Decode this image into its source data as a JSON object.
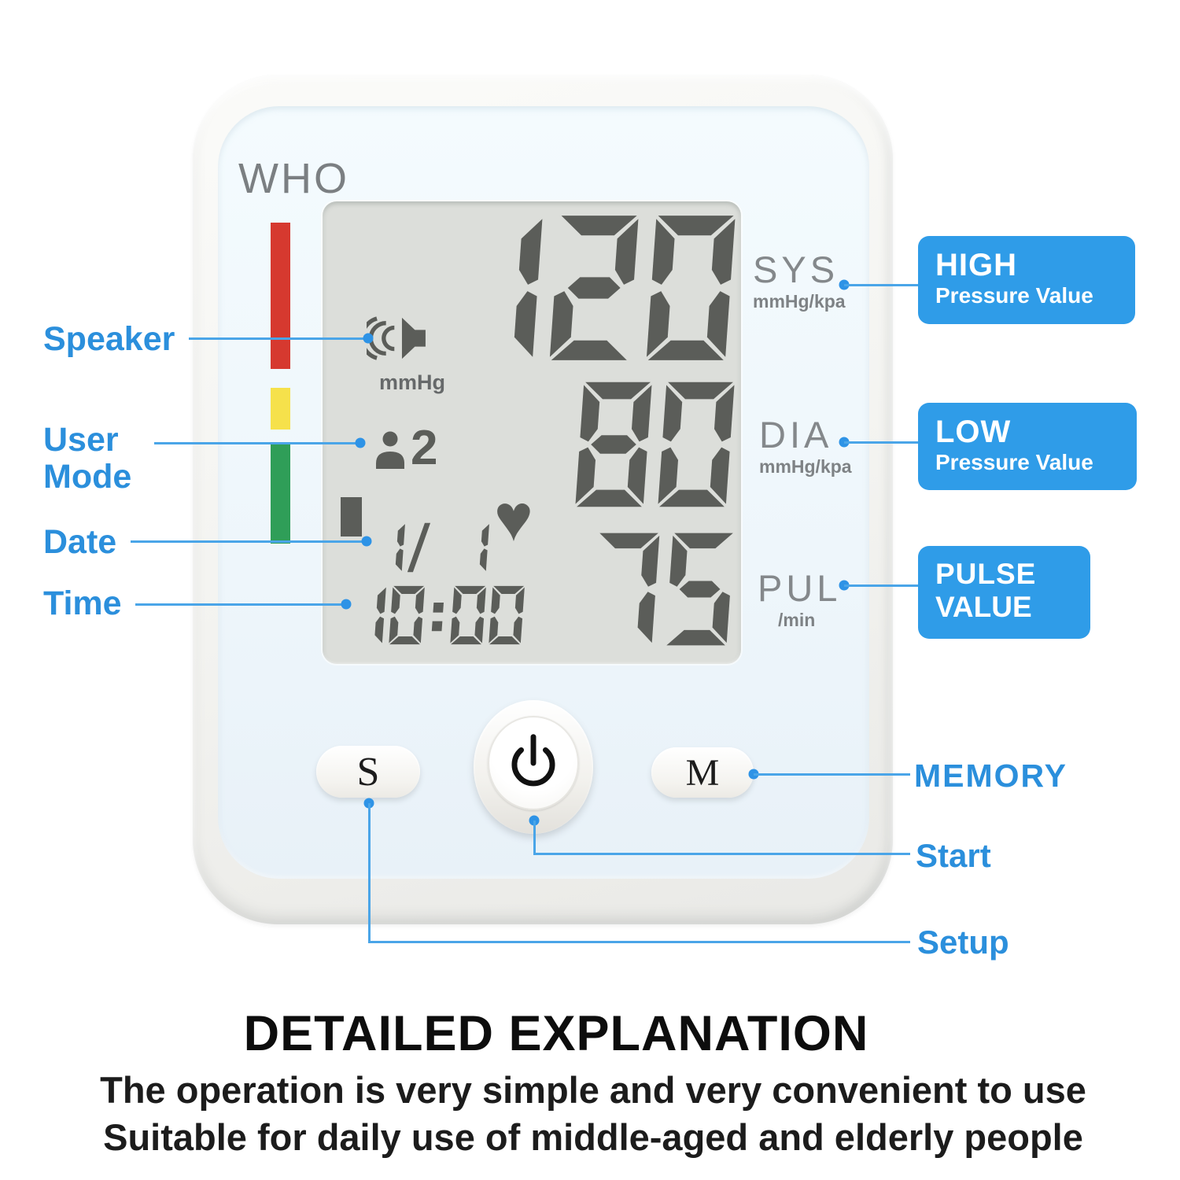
{
  "device": {
    "brand_label": "WHO",
    "display": {
      "sys_value": "120",
      "dia_value": "80",
      "pulse_value": "75",
      "date": "1/ 1",
      "time": "10:00",
      "unit_label": "mmHg",
      "user_mode_number": "2"
    },
    "panel_labels": {
      "sys": "SYS",
      "sys_unit": "mmHg/kpa",
      "dia": "DIA",
      "dia_unit": "mmHg/kpa",
      "pul": "PUL",
      "pul_unit": "/min"
    },
    "buttons": {
      "setup_label": "S",
      "memory_label": "M"
    },
    "icons": {
      "heart": "♥",
      "speaker": "speaker-horn-with-sound-waves",
      "user": "person-silhouette",
      "battery": "battery-bar",
      "power": "power-symbol"
    }
  },
  "annotations": {
    "left": [
      {
        "label": "Speaker"
      },
      {
        "label": "User Mode"
      },
      {
        "label": "Date"
      },
      {
        "label": "Time"
      }
    ],
    "right_boxes": [
      {
        "title": "HIGH",
        "subtitle": "Pressure Value"
      },
      {
        "title": "LOW",
        "subtitle": "Pressure Value"
      },
      {
        "title": "PULSE",
        "subtitle": "VALUE"
      }
    ],
    "bottom_right": [
      {
        "label": "MEMORY"
      },
      {
        "label": "Start"
      },
      {
        "label": "Setup"
      }
    ]
  },
  "footer": {
    "title": "DETAILED EXPLANATION",
    "line1": "The operation is very simple and very convenient to use",
    "line2": "Suitable for daily use of middle-aged and elderly people"
  },
  "colors": {
    "annotation_blue": "#2b8fdc",
    "callout_box_blue": "#2f9ce8",
    "connector_blue": "#4aa5e8",
    "who_red": "#d6392f",
    "who_yellow": "#f6e14b",
    "who_green": "#2f9e58",
    "lcd_background": "#dcdeda",
    "lcd_segment": "#5b5d59"
  }
}
